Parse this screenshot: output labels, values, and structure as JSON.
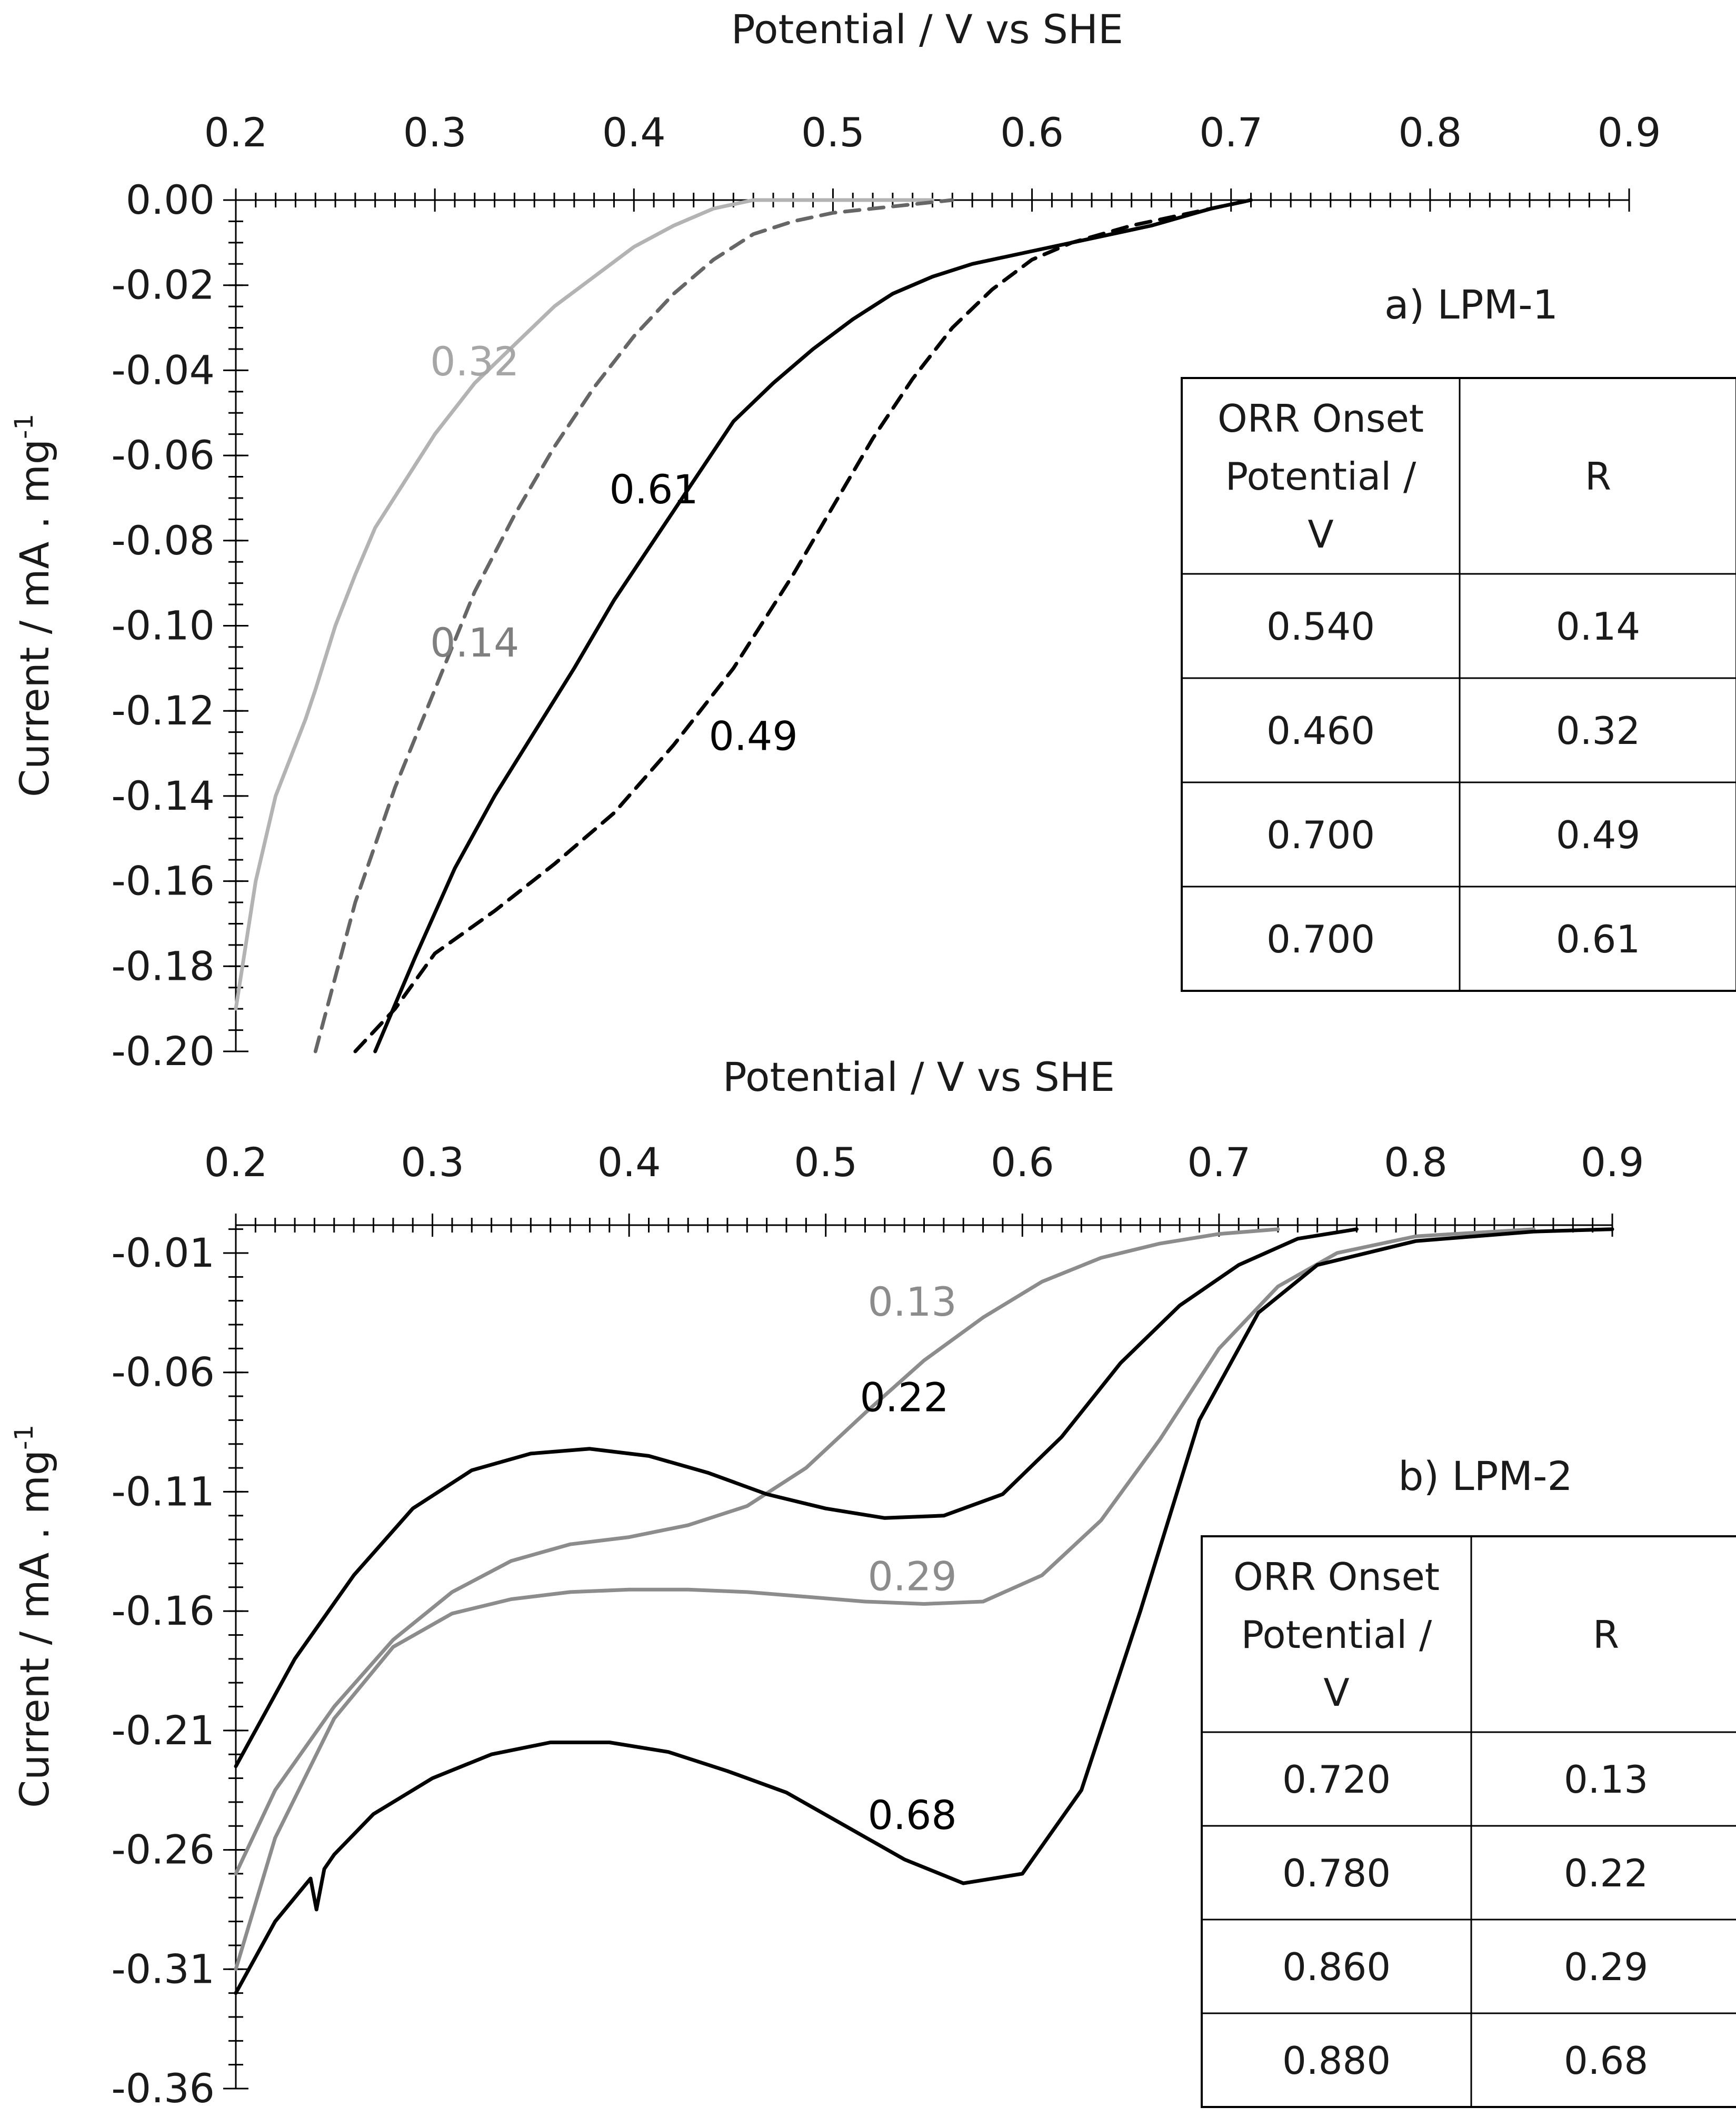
{
  "chart_data": [
    {
      "type": "line",
      "panel": "a",
      "title": "a) LPM-1",
      "xlabel": "Potential / V vs SHE",
      "ylabel": "Current / mA . mg",
      "ylabel_sup": "-1",
      "xlim": [
        0.2,
        0.9
      ],
      "ylim": [
        -0.2,
        0.0
      ],
      "x_ticks": [
        "0.2",
        "0.3",
        "0.4",
        "0.5",
        "0.6",
        "0.7",
        "0.8",
        "0.9"
      ],
      "y_ticks": [
        "0.00",
        "-0.02",
        "-0.04",
        "-0.06",
        "-0.08",
        "-0.10",
        "-0.12",
        "-0.14",
        "-0.16",
        "-0.18",
        "-0.20"
      ],
      "x_tick_values": [
        0.2,
        0.3,
        0.4,
        0.5,
        0.6,
        0.7,
        0.8,
        0.9
      ],
      "y_tick_values": [
        0.0,
        -0.02,
        -0.04,
        -0.06,
        -0.08,
        -0.1,
        -0.12,
        -0.14,
        -0.16,
        -0.18,
        -0.2
      ],
      "series": [
        {
          "name": "R 0.32",
          "label": "0.32",
          "label_at": [
            0.32,
            -0.038
          ],
          "color": "#b3b3b3",
          "dash": "solid",
          "x": [
            0.2,
            0.21,
            0.22,
            0.235,
            0.24,
            0.25,
            0.26,
            0.27,
            0.285,
            0.3,
            0.32,
            0.34,
            0.36,
            0.38,
            0.4,
            0.42,
            0.44,
            0.46,
            0.5,
            0.55
          ],
          "y": [
            -0.19,
            -0.16,
            -0.14,
            -0.122,
            -0.115,
            -0.1,
            -0.088,
            -0.077,
            -0.066,
            -0.055,
            -0.043,
            -0.034,
            -0.025,
            -0.018,
            -0.011,
            -0.006,
            -0.002,
            0.0,
            0.0,
            0.0
          ]
        },
        {
          "name": "R 0.14",
          "label": "0.14",
          "label_at": [
            0.32,
            -0.104
          ],
          "color": "#666666",
          "dash": "dashed",
          "x": [
            0.24,
            0.26,
            0.28,
            0.3,
            0.32,
            0.34,
            0.36,
            0.38,
            0.4,
            0.42,
            0.44,
            0.46,
            0.48,
            0.5,
            0.52,
            0.54,
            0.56
          ],
          "y": [
            -0.2,
            -0.165,
            -0.138,
            -0.115,
            -0.092,
            -0.074,
            -0.058,
            -0.044,
            -0.032,
            -0.022,
            -0.014,
            -0.008,
            -0.005,
            -0.003,
            -0.002,
            -0.001,
            0.0
          ]
        },
        {
          "name": "R 0.61",
          "label": "0.61",
          "label_at": [
            0.41,
            -0.068
          ],
          "color": "#000000",
          "dash": "solid",
          "x": [
            0.27,
            0.29,
            0.31,
            0.33,
            0.35,
            0.37,
            0.39,
            0.41,
            0.43,
            0.45,
            0.47,
            0.49,
            0.51,
            0.53,
            0.55,
            0.57,
            0.6,
            0.63,
            0.66,
            0.69,
            0.71
          ],
          "y": [
            -0.2,
            -0.178,
            -0.157,
            -0.14,
            -0.125,
            -0.11,
            -0.094,
            -0.08,
            -0.066,
            -0.052,
            -0.043,
            -0.035,
            -0.028,
            -0.022,
            -0.018,
            -0.015,
            -0.012,
            -0.009,
            -0.006,
            -0.002,
            0.0
          ]
        },
        {
          "name": "R 0.49",
          "label": "0.49",
          "label_at": [
            0.46,
            -0.126
          ],
          "color": "#000000",
          "dash": "dashed",
          "x": [
            0.26,
            0.28,
            0.3,
            0.33,
            0.36,
            0.39,
            0.42,
            0.45,
            0.48,
            0.5,
            0.52,
            0.54,
            0.56,
            0.58,
            0.6,
            0.62,
            0.65,
            0.68,
            0.71
          ],
          "y": [
            -0.2,
            -0.19,
            -0.177,
            -0.167,
            -0.156,
            -0.144,
            -0.128,
            -0.11,
            -0.088,
            -0.072,
            -0.056,
            -0.042,
            -0.03,
            -0.021,
            -0.014,
            -0.01,
            -0.006,
            -0.003,
            0.0
          ]
        }
      ],
      "table": {
        "header": [
          "ORR Onset Potential / V",
          "R"
        ],
        "header_lines": [
          "ORR Onset",
          "Potential /",
          "V"
        ],
        "rows": [
          [
            "0.540",
            "0.14"
          ],
          [
            "0.460",
            "0.32"
          ],
          [
            "0.700",
            "0.49"
          ],
          [
            "0.700",
            "0.61"
          ]
        ]
      }
    },
    {
      "type": "line",
      "panel": "b",
      "title": "b) LPM-2",
      "xlabel": "Potential / V vs SHE",
      "ylabel": "Current / mA . mg",
      "ylabel_sup": "-1",
      "xlim": [
        0.2,
        0.9
      ],
      "ylim": [
        -0.36,
        0.0
      ],
      "x_ticks": [
        "0.2",
        "0.3",
        "0.4",
        "0.5",
        "0.6",
        "0.7",
        "0.8",
        "0.9"
      ],
      "y_ticks": [
        "-0.01",
        "-0.06",
        "-0.11",
        "-0.16",
        "-0.21",
        "-0.26",
        "-0.31",
        "-0.36"
      ],
      "x_tick_values": [
        0.2,
        0.3,
        0.4,
        0.5,
        0.6,
        0.7,
        0.8,
        0.9
      ],
      "y_tick_values": [
        -0.01,
        -0.06,
        -0.11,
        -0.16,
        -0.21,
        -0.26,
        -0.31,
        -0.36
      ],
      "series": [
        {
          "name": "R 0.13",
          "label": "0.13",
          "label_at": [
            0.544,
            -0.0305
          ],
          "color": "#8c8c8c",
          "dash": "solid",
          "x": [
            0.2,
            0.22,
            0.25,
            0.28,
            0.31,
            0.34,
            0.37,
            0.4,
            0.43,
            0.46,
            0.49,
            0.52,
            0.55,
            0.58,
            0.61,
            0.64,
            0.67,
            0.7,
            0.73
          ],
          "y": [
            -0.27,
            -0.235,
            -0.2,
            -0.172,
            -0.152,
            -0.139,
            -0.132,
            -0.129,
            -0.124,
            -0.116,
            -0.1,
            -0.077,
            -0.055,
            -0.037,
            -0.022,
            -0.012,
            -0.006,
            -0.002,
            0.0
          ]
        },
        {
          "name": "R 0.22",
          "label": "0.22",
          "label_at": [
            0.54,
            -0.0705
          ],
          "color": "#000000",
          "dash": "solid",
          "x": [
            0.2,
            0.23,
            0.26,
            0.29,
            0.32,
            0.35,
            0.38,
            0.41,
            0.44,
            0.47,
            0.5,
            0.53,
            0.56,
            0.59,
            0.62,
            0.65,
            0.68,
            0.71,
            0.74,
            0.77
          ],
          "y": [
            -0.225,
            -0.18,
            -0.145,
            -0.117,
            -0.101,
            -0.094,
            -0.092,
            -0.095,
            -0.102,
            -0.111,
            -0.117,
            -0.121,
            -0.12,
            -0.111,
            -0.087,
            -0.056,
            -0.032,
            -0.015,
            -0.004,
            0.0
          ]
        },
        {
          "name": "R 0.29",
          "label": "0.29",
          "label_at": [
            0.544,
            -0.1455
          ],
          "color": "#8c8c8c",
          "dash": "solid",
          "x": [
            0.2,
            0.22,
            0.25,
            0.28,
            0.31,
            0.34,
            0.37,
            0.4,
            0.43,
            0.46,
            0.49,
            0.52,
            0.55,
            0.58,
            0.61,
            0.64,
            0.67,
            0.7,
            0.73,
            0.76,
            0.8,
            0.86
          ],
          "y": [
            -0.31,
            -0.255,
            -0.205,
            -0.175,
            -0.161,
            -0.155,
            -0.152,
            -0.151,
            -0.151,
            -0.152,
            -0.154,
            -0.156,
            -0.157,
            -0.156,
            -0.145,
            -0.122,
            -0.088,
            -0.05,
            -0.024,
            -0.01,
            -0.003,
            0.0
          ]
        },
        {
          "name": "R 0.68",
          "label": "0.68",
          "label_at": [
            0.544,
            -0.2455
          ],
          "color": "#000000",
          "dash": "solid",
          "x": [
            0.2,
            0.22,
            0.238,
            0.241,
            0.245,
            0.25,
            0.27,
            0.3,
            0.33,
            0.36,
            0.39,
            0.42,
            0.45,
            0.48,
            0.51,
            0.54,
            0.57,
            0.6,
            0.63,
            0.66,
            0.69,
            0.72,
            0.75,
            0.8,
            0.86,
            0.9
          ],
          "y": [
            -0.32,
            -0.29,
            -0.272,
            -0.285,
            -0.268,
            -0.262,
            -0.245,
            -0.23,
            -0.22,
            -0.215,
            -0.215,
            -0.219,
            -0.227,
            -0.236,
            -0.25,
            -0.264,
            -0.274,
            -0.27,
            -0.235,
            -0.16,
            -0.08,
            -0.035,
            -0.015,
            -0.005,
            -0.001,
            0.0
          ]
        }
      ],
      "table": {
        "header": [
          "ORR Onset Potential / V",
          "R"
        ],
        "header_lines": [
          "ORR Onset",
          "Potential /",
          "V"
        ],
        "rows": [
          [
            "0.720",
            "0.13"
          ],
          [
            "0.780",
            "0.22"
          ],
          [
            "0.860",
            "0.29"
          ],
          [
            "0.880",
            "0.68"
          ]
        ]
      }
    }
  ]
}
